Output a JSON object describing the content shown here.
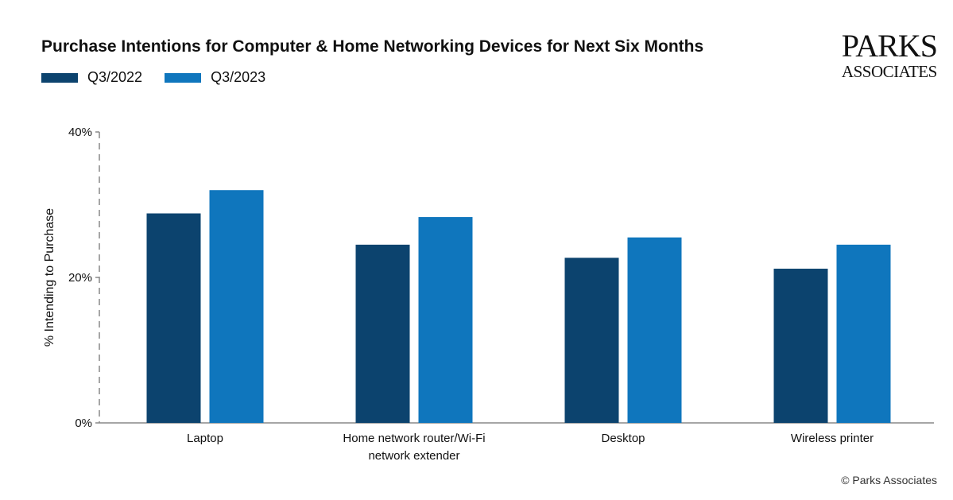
{
  "chart_data": {
    "type": "bar",
    "title": "Purchase Intentions for Computer & Home Networking Devices for Next Six Months",
    "ylabel": "% Intending to Purchase",
    "xlabel": "",
    "ylim": [
      0,
      40
    ],
    "yticks": [
      "0%",
      "20%",
      "40%"
    ],
    "ytick_values": [
      0,
      20,
      40
    ],
    "categories": [
      [
        "Laptop"
      ],
      [
        "Home network router/Wi-Fi",
        "network extender"
      ],
      [
        "Desktop"
      ],
      [
        "Wireless printer"
      ]
    ],
    "series": [
      {
        "name": "Q3/2022",
        "color": "#0c436e",
        "values": [
          28.8,
          24.5,
          22.7,
          21.2
        ]
      },
      {
        "name": "Q3/2023",
        "color": "#0f76bd",
        "values": [
          32.0,
          28.3,
          25.5,
          24.5
        ]
      }
    ],
    "legend_position": "top-left",
    "grid": false
  },
  "logo": {
    "line1": "PARKS",
    "line2": "ASSOCIATES"
  },
  "copyright": "© Parks Associates"
}
